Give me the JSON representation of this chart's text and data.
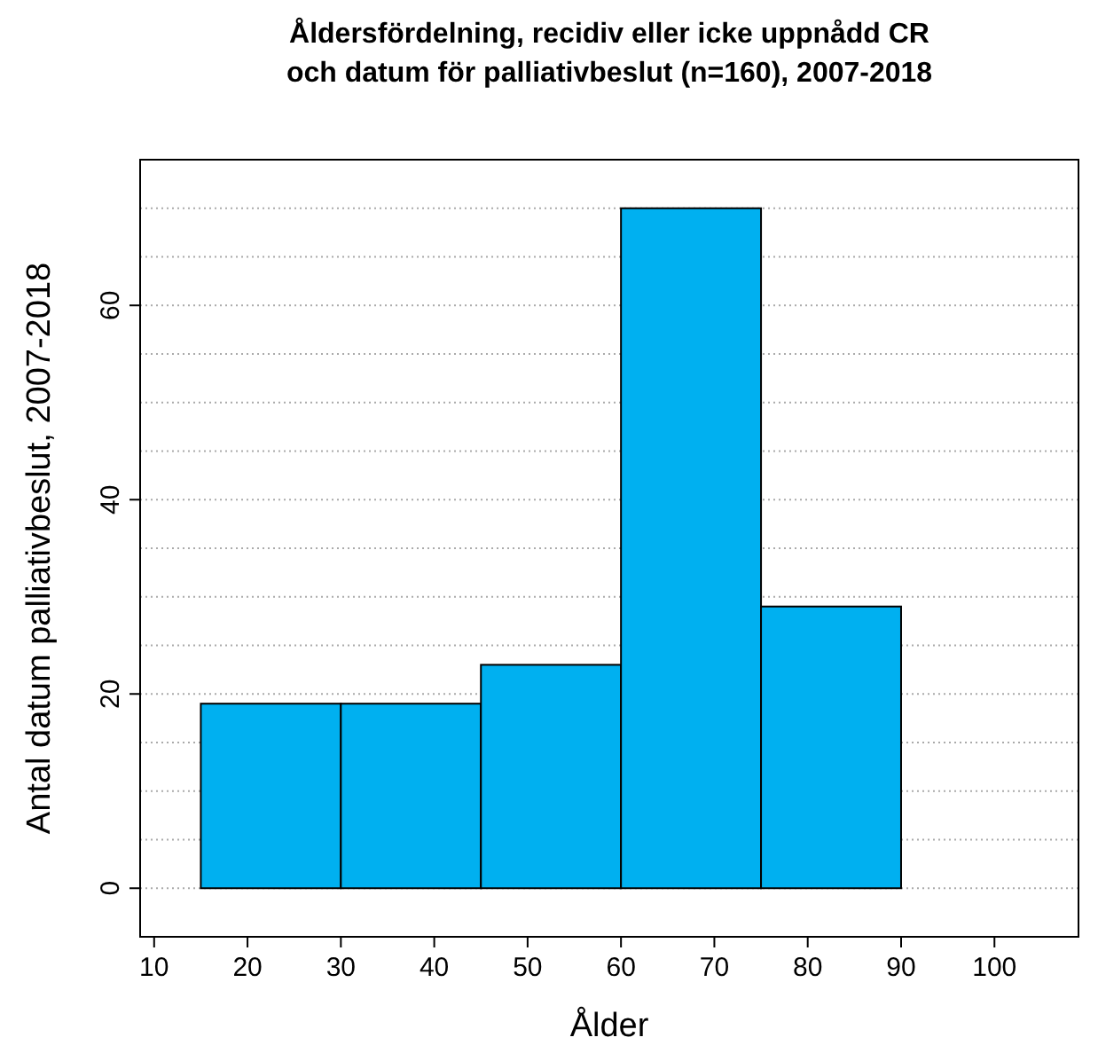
{
  "chart_data": {
    "type": "histogram",
    "title": "Åldersfördelning, recidiv eller icke uppnådd CR\noch datum för palliativbeslut (n=160), 2007-2018",
    "xlabel": "Ålder",
    "ylabel": "Antal datum palliativbeslut, 2007-2018",
    "bins": [
      15,
      30,
      45,
      60,
      75,
      90,
      105
    ],
    "values": [
      19,
      19,
      23,
      70,
      29,
      0
    ],
    "color": "#00b0f0",
    "xlim": [
      8.5,
      109
    ],
    "xticks": [
      10,
      20,
      30,
      40,
      50,
      60,
      70,
      80,
      90,
      100
    ],
    "ylim": [
      -5,
      75
    ],
    "yticks": [
      0,
      {
        "value": 5,
        "label": null
      },
      {
        "value": 10,
        "label": null
      },
      {
        "value": 15,
        "label": null
      },
      20,
      {
        "value": 25,
        "label": null
      },
      {
        "value": 30,
        "label": null
      },
      {
        "value": 35,
        "label": null
      },
      40,
      {
        "value": 45,
        "label": null
      },
      {
        "value": 50,
        "label": null
      },
      {
        "value": 55,
        "label": null
      },
      60,
      {
        "value": 65,
        "label": null
      },
      {
        "value": 70,
        "label": null
      }
    ],
    "grid": "y"
  }
}
